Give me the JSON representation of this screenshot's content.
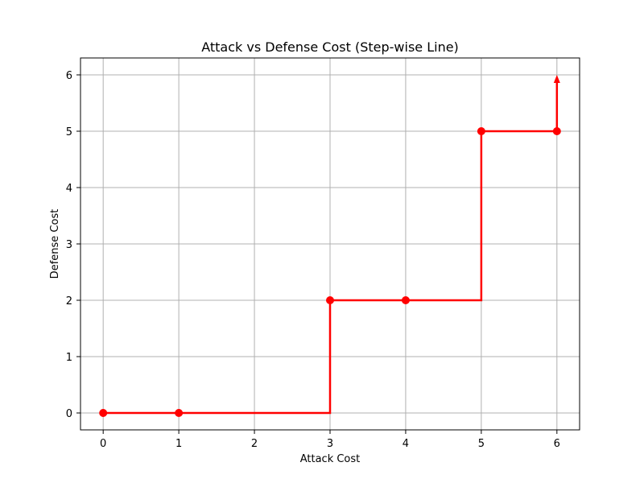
{
  "chart_data": {
    "type": "line",
    "title": "Attack vs Defense Cost (Step-wise Line)",
    "xlabel": "Attack Cost",
    "ylabel": "Defense Cost",
    "xlim": [
      -0.3,
      6.3
    ],
    "ylim": [
      -0.3,
      6.3
    ],
    "xticks": [
      0,
      1,
      2,
      3,
      4,
      5,
      6
    ],
    "yticks": [
      0,
      1,
      2,
      3,
      4,
      5,
      6
    ],
    "grid": true,
    "series": [
      {
        "color": "#ff0000",
        "step": "post",
        "marker": "circle",
        "x": [
          0,
          1,
          3,
          4,
          5,
          6
        ],
        "y": [
          0,
          0,
          2,
          2,
          5,
          5
        ],
        "arrow": {
          "from": [
            6,
            5
          ],
          "to": [
            6,
            6
          ]
        }
      }
    ]
  }
}
